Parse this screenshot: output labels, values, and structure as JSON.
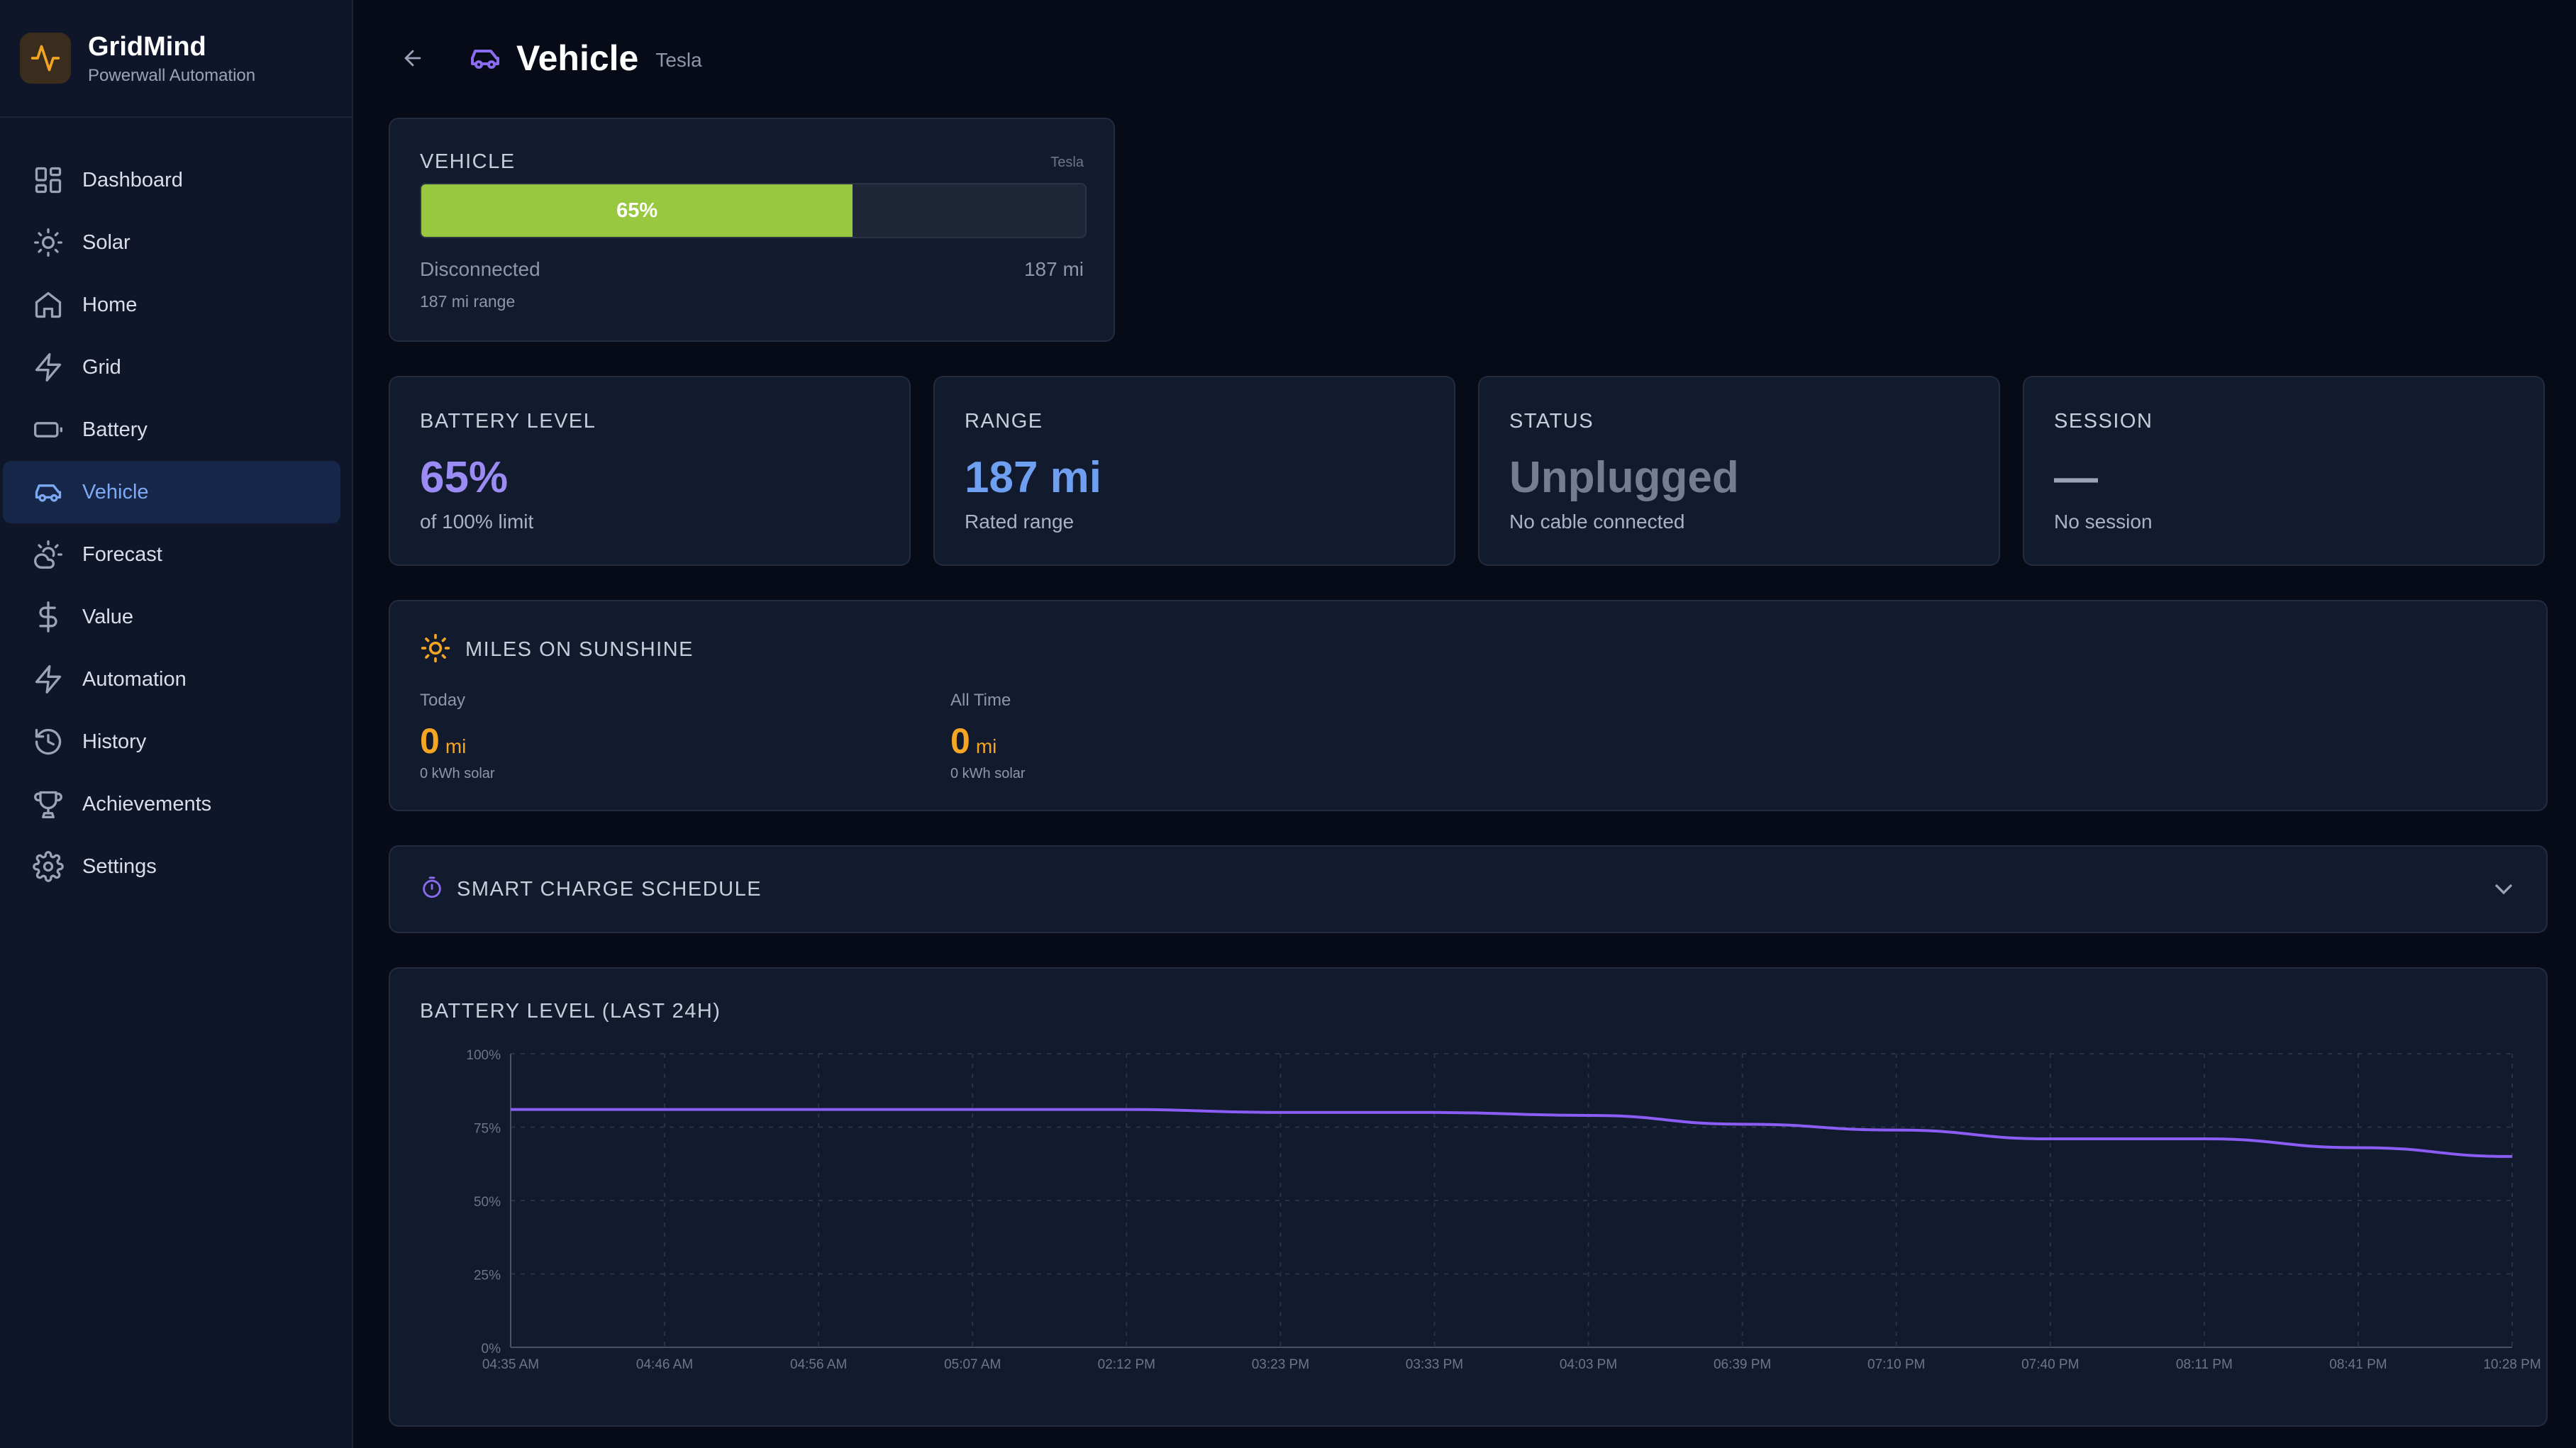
{
  "brand": {
    "name": "GridMind",
    "subtitle": "Powerwall Automation"
  },
  "nav": [
    {
      "label": "Dashboard",
      "icon": "dashboard-icon"
    },
    {
      "label": "Solar",
      "icon": "sun-icon"
    },
    {
      "label": "Home",
      "icon": "home-icon"
    },
    {
      "label": "Grid",
      "icon": "bolt-icon"
    },
    {
      "label": "Battery",
      "icon": "battery-icon"
    },
    {
      "label": "Vehicle",
      "icon": "car-icon",
      "active": true
    },
    {
      "label": "Forecast",
      "icon": "cloud-sun-icon"
    },
    {
      "label": "Value",
      "icon": "dollar-icon"
    },
    {
      "label": "Automation",
      "icon": "bolt-icon"
    },
    {
      "label": "History",
      "icon": "history-icon"
    },
    {
      "label": "Achievements",
      "icon": "trophy-icon"
    },
    {
      "label": "Settings",
      "icon": "gear-icon"
    }
  ],
  "header": {
    "title": "Vehicle",
    "subtitle": "Tesla"
  },
  "vehicle_card": {
    "label": "VEHICLE",
    "brand": "Tesla",
    "charge_percent": 65,
    "charge_label": "65%",
    "status": "Disconnected",
    "range": "187 mi",
    "range_detail": "187 mi range"
  },
  "stats": [
    {
      "label": "BATTERY LEVEL",
      "value": "65%",
      "sub": "of 100% limit",
      "color": "#9b8cf5"
    },
    {
      "label": "RANGE",
      "value": "187 mi",
      "sub": "Rated range",
      "color": "#6f9ff0"
    },
    {
      "label": "STATUS",
      "value": "Unplugged",
      "sub": "No cable connected",
      "color": "#747d92"
    },
    {
      "label": "SESSION",
      "value": "—",
      "sub": "No session",
      "color": "#9aa3b8"
    }
  ],
  "sunshine": {
    "title": "MILES ON SUNSHINE",
    "today": {
      "label": "Today",
      "value": "0",
      "unit": "mi",
      "detail": "0 kWh solar"
    },
    "all_time": {
      "label": "All Time",
      "value": "0",
      "unit": "mi",
      "detail": "0 kWh solar"
    }
  },
  "schedule": {
    "title": "SMART CHARGE SCHEDULE"
  },
  "colors": {
    "accent": "#6f9ff0",
    "line": "#8b5cf6",
    "charge_bar": "#97c840",
    "solar": "#f5a524"
  },
  "chart_data": {
    "type": "line",
    "title": "BATTERY LEVEL (LAST 24H)",
    "x": [
      "04:35 AM",
      "04:46 AM",
      "04:56 AM",
      "05:07 AM",
      "02:12 PM",
      "03:23 PM",
      "03:33 PM",
      "04:03 PM",
      "06:39 PM",
      "07:10 PM",
      "07:40 PM",
      "08:11 PM",
      "08:41 PM",
      "10:28 PM"
    ],
    "series": [
      {
        "values": [
          81,
          81,
          81,
          81,
          81,
          80,
          80,
          79,
          76,
          74,
          71,
          71,
          68,
          65
        ]
      }
    ],
    "yticks": [
      "100%",
      "75%",
      "50%",
      "25%",
      "0%"
    ],
    "ylim": [
      0,
      100
    ],
    "grid": true
  }
}
